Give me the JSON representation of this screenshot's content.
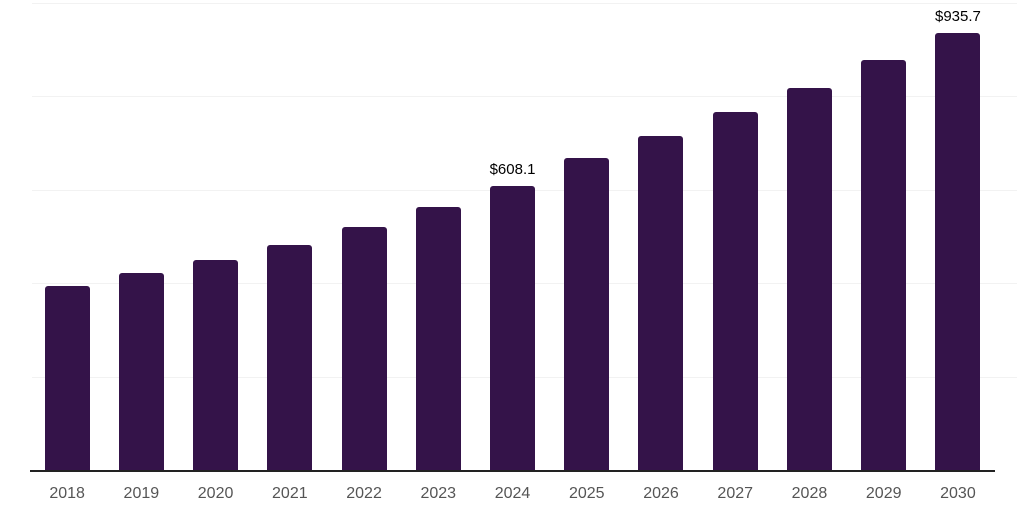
{
  "chart_data": {
    "type": "bar",
    "title": "",
    "xlabel": "",
    "ylabel": "",
    "categories": [
      "2018",
      "2019",
      "2020",
      "2021",
      "2022",
      "2023",
      "2024",
      "2025",
      "2026",
      "2027",
      "2028",
      "2029",
      "2030"
    ],
    "values": [
      394,
      422,
      450,
      482,
      521,
      564,
      608.1,
      668,
      715,
      767,
      819,
      878,
      935.7
    ],
    "data_labels": {
      "2024": "$608.1",
      "2030": "$935.7"
    },
    "ylim": [
      0,
      1000
    ],
    "gridlines": [
      200,
      400,
      600,
      800,
      1000
    ],
    "grid": "horizontal-only",
    "legend_position": "none",
    "y_axis_labels_visible": false
  },
  "colors": {
    "bar": "#341349",
    "axis_line": "#222222",
    "gridline": "#f2f2f2",
    "tick_label": "#555555",
    "value_label": "#000000",
    "background": "#ffffff"
  }
}
